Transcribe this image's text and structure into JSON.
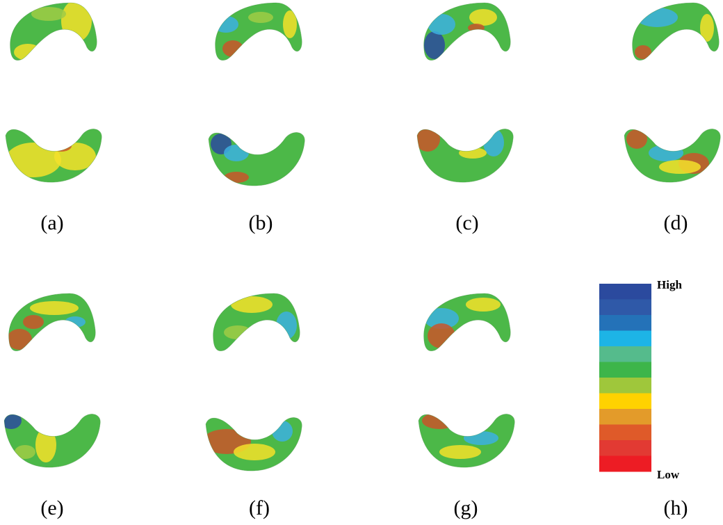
{
  "panels": [
    "(a)",
    "(b)",
    "(c)",
    "(d)",
    "(e)",
    "(f)",
    "(g)",
    "(h)"
  ],
  "colorbar": {
    "high": "High",
    "low": "Low",
    "colors": [
      "#2b4a9e",
      "#2f59a8",
      "#2472b8",
      "#1db4e6",
      "#55bb8c",
      "#3db54a",
      "#9fc73b",
      "#ffd200",
      "#e39b2a",
      "#df5a29",
      "#e23a33",
      "#ed1c24"
    ]
  }
}
